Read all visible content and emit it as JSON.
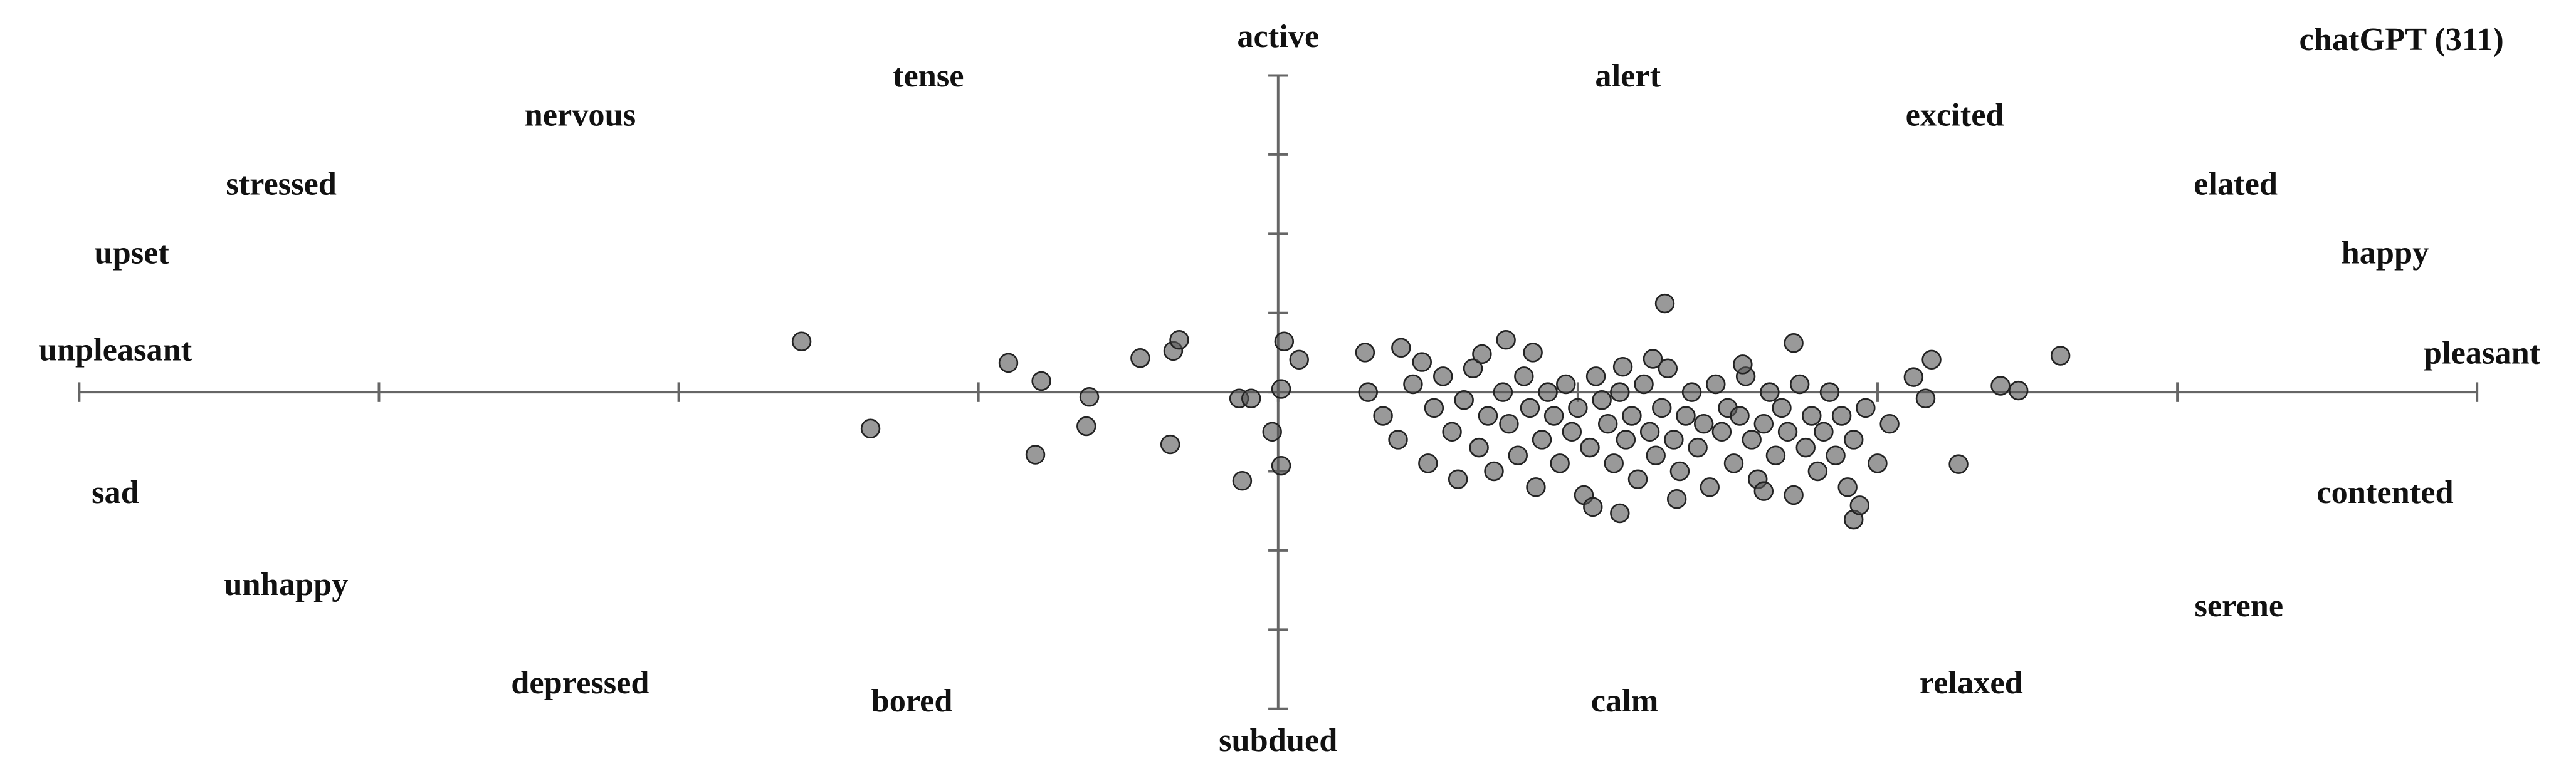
{
  "chart_data": {
    "type": "scatter",
    "title": "chatGPT (311)",
    "annotations": [
      "active",
      "tense",
      "alert",
      "nervous",
      "excited",
      "stressed",
      "elated",
      "upset",
      "happy",
      "unpleasant",
      "pleasant",
      "sad",
      "contented",
      "unhappy",
      "serene",
      "depressed",
      "bored",
      "calm",
      "relaxed",
      "subdued"
    ],
    "color": "#555555",
    "xlim": [
      -4,
      4
    ],
    "xticks": [
      -4,
      -3,
      -2,
      -1,
      0,
      1,
      2,
      3,
      4
    ],
    "ylim": [
      -4,
      4
    ],
    "yticks": [
      -4,
      -3,
      -2,
      -1,
      0,
      1,
      2,
      3,
      4
    ],
    "grid": false,
    "x": [
      -1.59,
      -1.36,
      -0.9,
      -0.79,
      -0.81,
      -0.64,
      -0.63,
      -0.46,
      -0.35,
      -0.33,
      -0.36,
      -0.12,
      -0.13,
      -0.09,
      -0.02,
      0.02,
      0.01,
      0.01,
      0.07,
      1.29,
      2.61,
      2.47,
      2.41,
      2.27,
      2.18,
      2.12,
      2.16,
      1.92,
      1.94,
      1.14,
      1.72,
      0.76,
      0.41,
      0.29,
      0.3,
      0.35,
      0.4,
      0.45,
      0.5,
      0.52,
      0.55,
      0.58,
      0.6,
      0.62,
      0.65,
      0.67,
      0.7,
      0.72,
      0.75,
      0.77,
      0.8,
      0.82,
      0.84,
      0.86,
      0.88,
      0.9,
      0.92,
      0.94,
      0.96,
      0.98,
      1.0,
      1.02,
      1.04,
      1.06,
      1.08,
      1.1,
      1.12,
      1.14,
      1.16,
      1.18,
      1.2,
      1.22,
      1.24,
      1.26,
      1.28,
      1.3,
      1.32,
      1.34,
      1.36,
      1.38,
      1.4,
      1.42,
      1.44,
      1.46,
      1.48,
      1.5,
      1.52,
      1.54,
      1.56,
      1.58,
      1.6,
      1.62,
      1.64,
      1.66,
      1.68,
      1.7,
      1.72,
      1.74,
      1.76,
      1.78,
      1.8,
      1.82,
      1.84,
      1.86,
      1.88,
      1.9,
      1.92,
      1.96,
      2.0,
      2.04,
      0.48,
      0.68,
      1.15,
      1.25,
      1.55,
      0.85,
      1.05,
      1.33,
      1.62
    ],
    "y": [
      0.64,
      -0.46,
      0.37,
      0.14,
      -0.79,
      -0.43,
      -0.06,
      0.43,
      0.52,
      0.66,
      -0.66,
      -1.12,
      -0.08,
      -0.08,
      -0.5,
      0.64,
      0.04,
      -0.93,
      0.41,
      1.12,
      0.46,
      0.02,
      0.08,
      -0.91,
      0.41,
      0.19,
      -0.08,
      -1.61,
      -1.43,
      -1.53,
      0.62,
      0.66,
      0.56,
      0.5,
      0.0,
      -0.3,
      -0.6,
      0.1,
      -0.9,
      -0.2,
      0.2,
      -0.5,
      -1.1,
      -0.1,
      0.3,
      -0.7,
      -0.3,
      -1.0,
      0.0,
      -0.4,
      -0.8,
      0.2,
      -0.2,
      -1.2,
      -0.6,
      0.0,
      -0.3,
      -0.9,
      0.1,
      -0.5,
      -0.2,
      -1.3,
      -0.7,
      0.2,
      -0.1,
      -0.4,
      -0.9,
      0.0,
      -0.6,
      -0.3,
      -1.1,
      0.1,
      -0.5,
      -0.8,
      -0.2,
      0.3,
      -0.6,
      -1.0,
      -0.3,
      0.0,
      -0.7,
      -0.4,
      -1.2,
      0.1,
      -0.5,
      -0.2,
      -0.9,
      -0.3,
      0.2,
      -0.6,
      -1.1,
      -0.4,
      0.0,
      -0.8,
      -0.2,
      -0.5,
      -1.3,
      0.1,
      -0.7,
      -0.3,
      -1.0,
      -0.5,
      0.0,
      -0.8,
      -0.3,
      -1.2,
      -0.6,
      -0.2,
      -0.9,
      -0.4,
      0.38,
      0.48,
      0.32,
      0.42,
      0.35,
      0.5,
      -1.45,
      -1.35,
      -1.25
    ]
  }
}
